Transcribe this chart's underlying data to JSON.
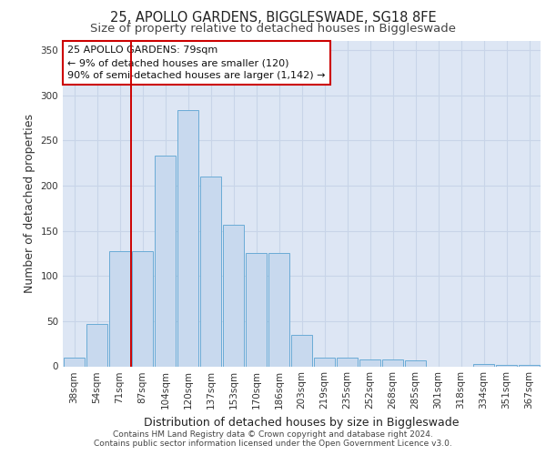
{
  "title_line1": "25, APOLLO GARDENS, BIGGLESWADE, SG18 8FE",
  "title_line2": "Size of property relative to detached houses in Biggleswade",
  "xlabel": "Distribution of detached houses by size in Biggleswade",
  "ylabel": "Number of detached properties",
  "categories": [
    "38sqm",
    "54sqm",
    "71sqm",
    "87sqm",
    "104sqm",
    "120sqm",
    "137sqm",
    "153sqm",
    "170sqm",
    "186sqm",
    "203sqm",
    "219sqm",
    "235sqm",
    "252sqm",
    "268sqm",
    "285sqm",
    "301sqm",
    "318sqm",
    "334sqm",
    "351sqm",
    "367sqm"
  ],
  "values": [
    10,
    47,
    127,
    127,
    233,
    283,
    210,
    157,
    125,
    125,
    35,
    10,
    10,
    8,
    8,
    7,
    0,
    0,
    3,
    2,
    2
  ],
  "bar_color": "#c8d9ee",
  "bar_edge_color": "#6aabd6",
  "grid_color": "#c8d4e8",
  "background_color": "#dde6f4",
  "vline_x": 2.5,
  "vline_color": "#cc0000",
  "annotation_text": "25 APOLLO GARDENS: 79sqm\n← 9% of detached houses are smaller (120)\n90% of semi-detached houses are larger (1,142) →",
  "annotation_box_color": "#ffffff",
  "annotation_box_edge": "#cc0000",
  "ylim": [
    0,
    360
  ],
  "yticks": [
    0,
    50,
    100,
    150,
    200,
    250,
    300,
    350
  ],
  "footer_line1": "Contains HM Land Registry data © Crown copyright and database right 2024.",
  "footer_line2": "Contains public sector information licensed under the Open Government Licence v3.0.",
  "title_fontsize": 10.5,
  "subtitle_fontsize": 9.5,
  "axis_label_fontsize": 9,
  "tick_fontsize": 7.5,
  "annotation_fontsize": 8,
  "footer_fontsize": 6.5
}
